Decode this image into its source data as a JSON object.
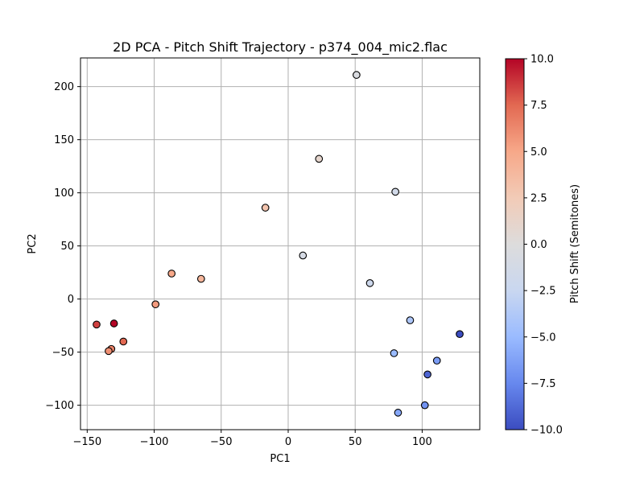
{
  "chart_data": {
    "type": "scatter",
    "title": "2D PCA - Pitch Shift Trajectory - p374_004_mic2.flac",
    "xlabel": "PC1",
    "ylabel": "PC2",
    "xlim": [
      -155,
      143
    ],
    "ylim": [
      -123,
      227
    ],
    "xticks": [
      -150,
      -100,
      -50,
      0,
      50,
      100
    ],
    "yticks": [
      -100,
      -50,
      0,
      50,
      100,
      150,
      200
    ],
    "grid": true,
    "colormap": "coolwarm",
    "colormap_stops": [
      "#3b4cc0",
      "#6788ee",
      "#9abbff",
      "#c9d7f0",
      "#dddcdc",
      "#f2cbb7",
      "#f7a889",
      "#e26952",
      "#b40426"
    ],
    "point_edge_color": "#000000",
    "colorbar": {
      "label": "Pitch Shift (Semitones)",
      "range": [
        -10,
        10
      ],
      "ticks": [
        10.0,
        7.5,
        5.0,
        2.5,
        0.0,
        -2.5,
        -5.0,
        -7.5,
        -10.0
      ],
      "tick_labels": [
        "10.0",
        "7.5",
        "5.0",
        "2.5",
        "0.0",
        "−2.5",
        "−5.0",
        "−7.5",
        "−10.0"
      ]
    },
    "points": [
      {
        "x": 51,
        "y": 211,
        "pitch": -0.5
      },
      {
        "x": 23,
        "y": 132,
        "pitch": 1.0
      },
      {
        "x": 80,
        "y": 101,
        "pitch": -1.5
      },
      {
        "x": -17,
        "y": 86,
        "pitch": 3.0
      },
      {
        "x": 11,
        "y": 41,
        "pitch": -1.0
      },
      {
        "x": -87,
        "y": 24,
        "pitch": 5.0
      },
      {
        "x": -65,
        "y": 19,
        "pitch": 4.0
      },
      {
        "x": 61,
        "y": 15,
        "pitch": -2.0
      },
      {
        "x": -99,
        "y": -5,
        "pitch": 5.5
      },
      {
        "x": 91,
        "y": -20,
        "pitch": -4.0
      },
      {
        "x": -143,
        "y": -24,
        "pitch": 8.5
      },
      {
        "x": -130,
        "y": -23,
        "pitch": 10.0
      },
      {
        "x": 128,
        "y": -33,
        "pitch": -10.0
      },
      {
        "x": -123,
        "y": -40,
        "pitch": 7.5
      },
      {
        "x": -132,
        "y": -47,
        "pitch": 6.5
      },
      {
        "x": -134,
        "y": -49,
        "pitch": 6.0
      },
      {
        "x": 79,
        "y": -51,
        "pitch": -5.0
      },
      {
        "x": 111,
        "y": -58,
        "pitch": -6.5
      },
      {
        "x": 104,
        "y": -71,
        "pitch": -9.0
      },
      {
        "x": 102,
        "y": -100,
        "pitch": -7.0
      },
      {
        "x": 82,
        "y": -107,
        "pitch": -6.0
      }
    ]
  }
}
